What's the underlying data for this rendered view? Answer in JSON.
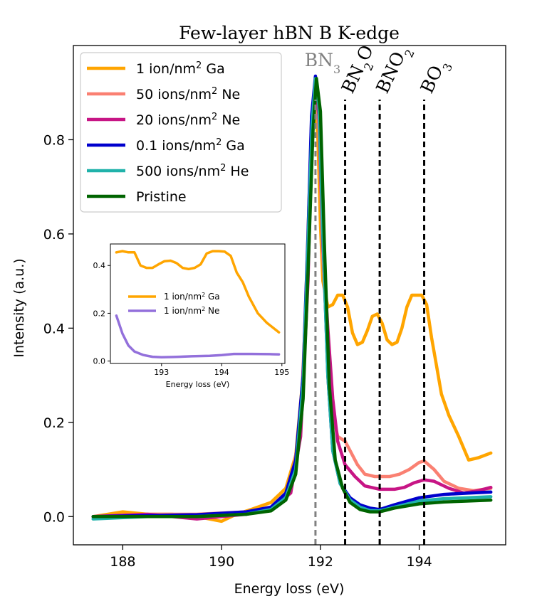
{
  "chart_data": {
    "type": "line",
    "title": "Few-layer hBN B K-edge",
    "xlabel": "Energy loss (eV)",
    "ylabel": "Intensity (a.u.)",
    "xlim": [
      187.0,
      195.75
    ],
    "ylim": [
      -0.06,
      1.0
    ],
    "xticks": [
      188,
      190,
      192,
      194
    ],
    "xtick_labels": [
      "188",
      "190",
      "192",
      "194"
    ],
    "yticks": [
      0.0,
      0.2,
      0.4,
      0.6,
      0.8
    ],
    "ytick_labels": [
      "0.0",
      "0.2",
      "0.4",
      "0.6",
      "0.8"
    ],
    "reference_lines": [
      {
        "x": 191.9,
        "label_main": "BN",
        "label_sub": "3",
        "label_tail": "",
        "color": "#808080",
        "rotated": false
      },
      {
        "x": 192.5,
        "label_main": "BN",
        "label_sub": "2",
        "label_tail": "O",
        "color": "#000000",
        "rotated": true
      },
      {
        "x": 193.2,
        "label_main": "BNO",
        "label_sub": "2",
        "label_tail": "",
        "color": "#000000",
        "rotated": true
      },
      {
        "x": 194.1,
        "label_main": "BO",
        "label_sub": "3",
        "label_tail": "",
        "color": "#000000",
        "rotated": true
      }
    ],
    "legend": {
      "placement": "upper-left",
      "entries": [
        {
          "pre": "1 ion/nm",
          "sup": "2",
          "post": " Ga",
          "color": "#FFA500"
        },
        {
          "pre": "50 ions/nm",
          "sup": "2",
          "post": " Ne",
          "color": "#FA8072"
        },
        {
          "pre": "20 ions/nm",
          "sup": "2",
          "post": " Ne",
          "color": "#C71585"
        },
        {
          "pre": "0.1 ions/nm",
          "sup": "2",
          "post": " Ga",
          "color": "#0000CD"
        },
        {
          "pre": "500 ions/nm",
          "sup": "2",
          "post": " He",
          "color": "#20B2AA"
        },
        {
          "pre": "Pristine",
          "sup": "",
          "post": "",
          "color": "#006400"
        }
      ]
    },
    "series": [
      {
        "name": "1 ion/nm2 Ga",
        "color": "#FFA500",
        "x": [
          187.4,
          188.0,
          188.5,
          189.0,
          189.5,
          190.0,
          190.3,
          190.6,
          191.0,
          191.3,
          191.5,
          191.65,
          191.75,
          191.82,
          191.88,
          191.95,
          192.0,
          192.05,
          192.15,
          192.25,
          192.35,
          192.45,
          192.55,
          192.65,
          192.75,
          192.85,
          192.95,
          193.05,
          193.15,
          193.25,
          193.35,
          193.45,
          193.55,
          193.65,
          193.75,
          193.85,
          193.95,
          194.05,
          194.15,
          194.25,
          194.35,
          194.45,
          194.6,
          194.8,
          195.0,
          195.2,
          195.45
        ],
        "y": [
          0.0,
          0.01,
          0.005,
          0.005,
          0.0,
          -0.01,
          0.005,
          0.015,
          0.03,
          0.06,
          0.13,
          0.3,
          0.6,
          0.84,
          0.9,
          0.8,
          0.62,
          0.5,
          0.445,
          0.45,
          0.47,
          0.47,
          0.445,
          0.39,
          0.365,
          0.37,
          0.395,
          0.425,
          0.43,
          0.41,
          0.375,
          0.365,
          0.37,
          0.4,
          0.445,
          0.47,
          0.47,
          0.47,
          0.45,
          0.38,
          0.32,
          0.26,
          0.215,
          0.17,
          0.12,
          0.125,
          0.135
        ]
      },
      {
        "name": "50 ions/nm2 Ne",
        "color": "#FA8072",
        "x": [
          187.4,
          188.5,
          189.5,
          190.5,
          191.0,
          191.4,
          191.6,
          191.75,
          191.83,
          191.9,
          191.97,
          192.05,
          192.15,
          192.25,
          192.35,
          192.5,
          192.6,
          192.75,
          192.9,
          193.1,
          193.4,
          193.6,
          193.8,
          194.0,
          194.1,
          194.3,
          194.5,
          194.8,
          195.1,
          195.45
        ],
        "y": [
          0.0,
          0.005,
          0.005,
          0.01,
          0.02,
          0.06,
          0.2,
          0.55,
          0.83,
          0.92,
          0.82,
          0.55,
          0.35,
          0.22,
          0.17,
          0.16,
          0.14,
          0.11,
          0.09,
          0.085,
          0.085,
          0.09,
          0.1,
          0.115,
          0.118,
          0.1,
          0.075,
          0.06,
          0.055,
          0.06
        ]
      },
      {
        "name": "20 ions/nm2 Ne",
        "color": "#C71585",
        "x": [
          187.4,
          188.5,
          189.0,
          189.5,
          190.0,
          190.5,
          191.0,
          191.4,
          191.6,
          191.75,
          191.83,
          191.9,
          191.97,
          192.05,
          192.15,
          192.25,
          192.35,
          192.5,
          192.7,
          192.9,
          193.2,
          193.5,
          193.7,
          193.9,
          194.1,
          194.3,
          194.6,
          194.9,
          195.2,
          195.45
        ],
        "y": [
          0.0,
          0.005,
          0.0,
          -0.005,
          0.0,
          0.005,
          0.015,
          0.05,
          0.17,
          0.5,
          0.82,
          0.92,
          0.85,
          0.58,
          0.4,
          0.25,
          0.16,
          0.11,
          0.085,
          0.065,
          0.058,
          0.058,
          0.062,
          0.072,
          0.078,
          0.075,
          0.06,
          0.05,
          0.055,
          0.062
        ]
      },
      {
        "name": "0.1 ions/nm2 Ga",
        "color": "#0000CD",
        "x": [
          187.4,
          188.5,
          189.5,
          190.5,
          191.0,
          191.3,
          191.5,
          191.65,
          191.75,
          191.82,
          191.9,
          191.97,
          192.05,
          192.15,
          192.25,
          192.4,
          192.6,
          192.8,
          193.0,
          193.2,
          193.5,
          194.0,
          194.5,
          195.0,
          195.45
        ],
        "y": [
          0.0,
          0.002,
          0.004,
          0.01,
          0.02,
          0.05,
          0.12,
          0.3,
          0.6,
          0.85,
          0.935,
          0.88,
          0.6,
          0.3,
          0.14,
          0.07,
          0.04,
          0.025,
          0.018,
          0.015,
          0.025,
          0.04,
          0.047,
          0.05,
          0.052
        ]
      },
      {
        "name": "500 ions/nm2 He",
        "color": "#20B2AA",
        "x": [
          187.4,
          188.5,
          189.5,
          190.5,
          191.0,
          191.3,
          191.5,
          191.65,
          191.75,
          191.83,
          191.9,
          191.97,
          192.05,
          192.15,
          192.25,
          192.4,
          192.6,
          192.8,
          193.0,
          193.2,
          193.5,
          194.0,
          194.5,
          195.0,
          195.45
        ],
        "y": [
          -0.005,
          0.0,
          0.0,
          0.005,
          0.015,
          0.04,
          0.1,
          0.28,
          0.58,
          0.83,
          0.93,
          0.87,
          0.6,
          0.3,
          0.14,
          0.07,
          0.035,
          0.02,
          0.013,
          0.012,
          0.02,
          0.033,
          0.038,
          0.04,
          0.042
        ]
      },
      {
        "name": "Pristine",
        "color": "#006400",
        "x": [
          187.4,
          188.5,
          189.5,
          190.5,
          191.0,
          191.3,
          191.5,
          191.65,
          191.75,
          191.85,
          191.92,
          192.0,
          192.08,
          192.18,
          192.3,
          192.45,
          192.6,
          192.8,
          193.0,
          193.2,
          193.5,
          194.0,
          194.5,
          195.0,
          195.45
        ],
        "y": [
          0.0,
          0.0,
          0.0,
          0.005,
          0.012,
          0.035,
          0.09,
          0.25,
          0.52,
          0.82,
          0.93,
          0.86,
          0.58,
          0.28,
          0.12,
          0.06,
          0.03,
          0.015,
          0.01,
          0.01,
          0.018,
          0.027,
          0.031,
          0.033,
          0.035
        ]
      }
    ],
    "inset": {
      "xlabel": "Energy loss (eV)",
      "xlim": [
        192.15,
        195.05
      ],
      "ylim": [
        -0.01,
        0.49
      ],
      "xticks": [
        193,
        194,
        195
      ],
      "xtick_labels": [
        "193",
        "194",
        "195"
      ],
      "yticks": [
        0.0,
        0.2,
        0.4
      ],
      "ytick_labels": [
        "0.0",
        "0.2",
        "0.4"
      ],
      "legend": [
        {
          "pre": "1 ion/nm",
          "sup": "2",
          "post": " Ga",
          "color": "#FFA500"
        },
        {
          "pre": "1 ion/nm",
          "sup": "2",
          "post": " Ne",
          "color": "#9370DB"
        }
      ],
      "series": [
        {
          "name": "1 ion/nm2 Ga",
          "color": "#FFA500",
          "x": [
            192.25,
            192.35,
            192.45,
            192.55,
            192.65,
            192.75,
            192.85,
            192.95,
            193.05,
            193.15,
            193.25,
            193.35,
            193.45,
            193.55,
            193.65,
            193.75,
            193.85,
            193.95,
            194.05,
            194.15,
            194.25,
            194.35,
            194.45,
            194.6,
            194.75,
            194.95
          ],
          "y": [
            0.455,
            0.46,
            0.455,
            0.455,
            0.4,
            0.39,
            0.39,
            0.405,
            0.418,
            0.42,
            0.41,
            0.39,
            0.385,
            0.39,
            0.405,
            0.45,
            0.46,
            0.46,
            0.458,
            0.44,
            0.37,
            0.33,
            0.27,
            0.2,
            0.16,
            0.12
          ]
        },
        {
          "name": "1 ion/nm2 Ne",
          "color": "#9370DB",
          "x": [
            192.25,
            192.35,
            192.45,
            192.55,
            192.7,
            192.85,
            193.0,
            193.2,
            193.5,
            193.8,
            194.0,
            194.2,
            194.5,
            194.8,
            194.95
          ],
          "y": [
            0.19,
            0.115,
            0.065,
            0.04,
            0.025,
            0.018,
            0.016,
            0.017,
            0.02,
            0.022,
            0.025,
            0.03,
            0.03,
            0.029,
            0.028
          ]
        }
      ]
    }
  }
}
